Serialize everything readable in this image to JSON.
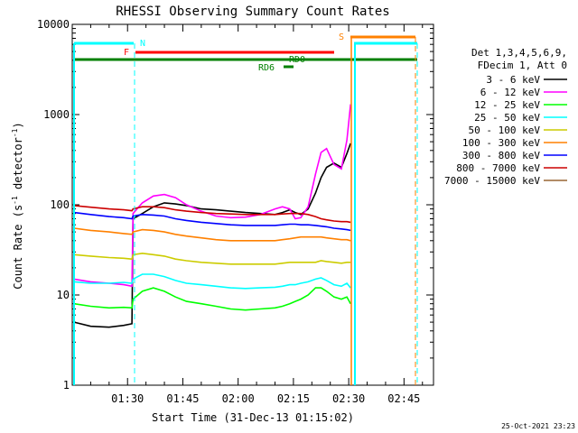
{
  "chart_data": {
    "type": "line",
    "title": "RHESSI Observing Summary Count Rates",
    "xlabel": "Start Time (31-Dec-13 01:15:02)",
    "ylabel_main": "Count Rate (s",
    "ylabel_sup": "-1",
    "ylabel_mid": " detector",
    "ylabel_sup2": "-1",
    "ylabel_end": ")",
    "yscale": "log",
    "ylim": [
      1,
      10000
    ],
    "xlim": [
      75.0,
      173.0
    ],
    "y_ticks": [
      {
        "v": 1,
        "label": "1"
      },
      {
        "v": 10,
        "label": "10"
      },
      {
        "v": 100,
        "label": "100"
      },
      {
        "v": 1000,
        "label": "1000"
      },
      {
        "v": 10000,
        "label": "10000"
      }
    ],
    "x_ticks": [
      {
        "v": 90,
        "label": "01:30"
      },
      {
        "v": 105,
        "label": "01:45"
      },
      {
        "v": 120,
        "label": "02:00"
      },
      {
        "v": 135,
        "label": "02:15"
      },
      {
        "v": 150,
        "label": "02:30"
      },
      {
        "v": 165,
        "label": "02:45"
      }
    ],
    "legend_header": [
      "Det 1,3,4,5,6,9,",
      "FDecim 1, Att 0"
    ],
    "series": [
      {
        "name": "3 - 6 keV",
        "color": "#000000",
        "x": [
          75.5,
          80,
          85,
          89,
          91.2,
          91.5,
          94,
          97,
          100,
          103,
          106,
          110,
          114,
          118,
          122,
          126,
          130,
          132,
          134,
          135.5,
          137,
          139,
          141,
          142.5,
          144,
          146,
          148,
          149.5,
          150.5
        ],
        "y": [
          5,
          4.5,
          4.4,
          4.6,
          4.8,
          70,
          80,
          95,
          105,
          102,
          98,
          90,
          88,
          85,
          82,
          80,
          78,
          82,
          88,
          82,
          78,
          90,
          135,
          200,
          260,
          290,
          260,
          370,
          480
        ]
      },
      {
        "name": "6 - 12 keV",
        "color": "#ff00ff",
        "x": [
          75.5,
          80,
          85,
          89,
          91.2,
          91.5,
          94,
          97,
          100,
          103,
          106,
          110,
          114,
          118,
          122,
          126,
          130,
          132,
          134,
          135.5,
          137,
          139,
          141,
          142.5,
          144,
          146,
          148,
          149.5,
          150.5
        ],
        "y": [
          15,
          14,
          13.5,
          13,
          12.5,
          80,
          105,
          125,
          130,
          120,
          100,
          85,
          75,
          72,
          73,
          78,
          90,
          95,
          90,
          70,
          72,
          95,
          220,
          380,
          420,
          280,
          250,
          520,
          1300
        ]
      },
      {
        "name": "12 - 25 keV",
        "color": "#00ff00",
        "x": [
          75.5,
          80,
          85,
          89,
          91.2,
          91.5,
          94,
          97,
          100,
          103,
          106,
          110,
          114,
          118,
          122,
          126,
          130,
          132,
          134,
          135.5,
          137,
          139,
          141,
          142.5,
          144,
          146,
          148,
          149.5,
          150.5
        ],
        "y": [
          8,
          7.5,
          7.2,
          7.3,
          7.2,
          9,
          11,
          12,
          11,
          9.5,
          8.5,
          8,
          7.5,
          7,
          6.8,
          7,
          7.2,
          7.5,
          8,
          8.5,
          9,
          10,
          12,
          12,
          11,
          9.5,
          9,
          9.5,
          8
        ]
      },
      {
        "name": "25 - 50 keV",
        "color": "#00ffff",
        "x": [
          75.5,
          80,
          85,
          89,
          91.2,
          91.5,
          94,
          97,
          100,
          103,
          106,
          110,
          114,
          118,
          122,
          126,
          130,
          132,
          134,
          135.5,
          137,
          139,
          141,
          142.5,
          144,
          146,
          148,
          149.5,
          150.5
        ],
        "y": [
          14,
          13.5,
          13.5,
          13.8,
          13.5,
          15,
          17,
          17,
          16,
          14.5,
          13.5,
          13,
          12.5,
          12,
          11.8,
          12,
          12.2,
          12.5,
          13,
          13,
          13.5,
          14,
          15,
          15.5,
          14.5,
          13,
          12.5,
          13.5,
          12
        ]
      },
      {
        "name": "50 - 100 keV",
        "color": "#cccc00",
        "x": [
          75.5,
          80,
          85,
          89,
          91.2,
          91.5,
          94,
          97,
          100,
          103,
          106,
          110,
          114,
          118,
          122,
          126,
          130,
          132,
          134,
          135.5,
          137,
          139,
          141,
          142.5,
          144,
          146,
          148,
          149.5,
          150.5
        ],
        "y": [
          28,
          27,
          26,
          25.5,
          25,
          28,
          29,
          28,
          27,
          25,
          24,
          23,
          22.5,
          22,
          22,
          22,
          22,
          22.5,
          23,
          23,
          23,
          23,
          23,
          24,
          23.5,
          23,
          22.5,
          23,
          23
        ]
      },
      {
        "name": "100 - 300 keV",
        "color": "#ff8000",
        "x": [
          75.5,
          80,
          85,
          89,
          91.2,
          91.5,
          94,
          97,
          100,
          103,
          106,
          110,
          114,
          118,
          122,
          126,
          130,
          132,
          134,
          135.5,
          137,
          139,
          141,
          142.5,
          144,
          146,
          148,
          149.5,
          150.5
        ],
        "y": [
          55,
          52,
          50,
          48,
          47,
          50,
          53,
          52,
          50,
          47,
          45,
          43,
          41,
          40,
          40,
          40,
          40,
          41,
          42,
          43,
          44,
          44,
          44,
          44,
          43,
          42,
          41,
          41,
          40
        ]
      },
      {
        "name": "300 - 800 keV",
        "color": "#0000ff",
        "x": [
          75.5,
          80,
          85,
          89,
          91.2,
          91.5,
          94,
          97,
          100,
          103,
          106,
          110,
          114,
          118,
          122,
          126,
          130,
          132,
          134,
          135.5,
          137,
          139,
          141,
          142.5,
          144,
          146,
          148,
          149.5,
          150.5
        ],
        "y": [
          82,
          78,
          74,
          72,
          70,
          75,
          78,
          77,
          75,
          70,
          67,
          64,
          62,
          60,
          59,
          59,
          59,
          60,
          61,
          61,
          60,
          60,
          59,
          58,
          57,
          55,
          54,
          53,
          52
        ]
      },
      {
        "name": "800 - 7000 keV",
        "color": "#cc0000",
        "x": [
          75.5,
          80,
          85,
          89,
          91.2,
          91.5,
          94,
          97,
          100,
          103,
          106,
          110,
          114,
          118,
          122,
          126,
          130,
          132,
          134,
          135.5,
          137,
          139,
          141,
          142.5,
          144,
          146,
          148,
          149.5,
          150.5
        ],
        "y": [
          98,
          94,
          90,
          88,
          86,
          90,
          95,
          95,
          93,
          88,
          85,
          82,
          80,
          79,
          78,
          78,
          78,
          79,
          80,
          80,
          80,
          78,
          74,
          70,
          68,
          66,
          65,
          65,
          64
        ]
      },
      {
        "name": "7000 - 15000 keV",
        "color": "#996633",
        "x": [],
        "y": []
      }
    ],
    "annotations": [
      {
        "label": "N",
        "color": "#00ffff"
      },
      {
        "label": "F",
        "color": "#ff0000"
      },
      {
        "label": "S",
        "color": "#ff8000"
      },
      {
        "label": "RD0",
        "color": "#008000"
      },
      {
        "label": "RD6",
        "color": "#008000"
      }
    ]
  },
  "footer_timestamp": "25-Oct-2021 23:23"
}
